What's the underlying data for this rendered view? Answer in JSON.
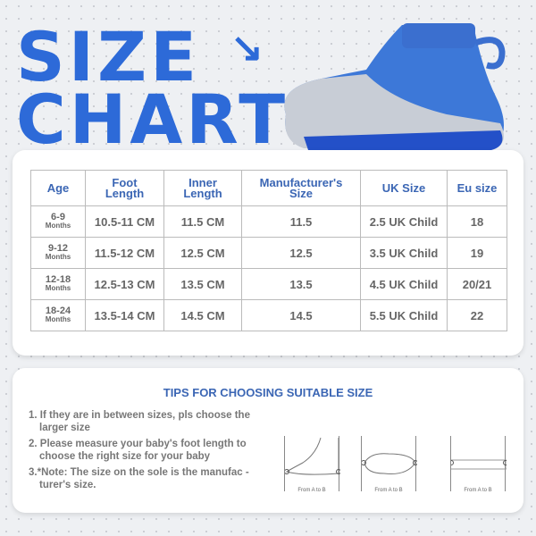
{
  "title": {
    "line1": "SIZE",
    "line2": "CHART",
    "arrow": "↘"
  },
  "table": {
    "headers": [
      "Age",
      "Foot Length",
      "Inner Length",
      "Manufacturer's Size",
      "UK Size",
      "Eu size"
    ],
    "rows": [
      {
        "age": "6-9",
        "unit": "Months",
        "foot": "10.5-11 CM",
        "inner": "11.5 CM",
        "mfr": "11.5",
        "uk": "2.5 UK Child",
        "eu": "18"
      },
      {
        "age": "9-12",
        "unit": "Months",
        "foot": "11.5-12 CM",
        "inner": "12.5 CM",
        "mfr": "12.5",
        "uk": "3.5 UK Child",
        "eu": "19"
      },
      {
        "age": "12-18",
        "unit": "Months",
        "foot": "12.5-13 CM",
        "inner": "13.5 CM",
        "mfr": "13.5",
        "uk": "4.5 UK Child",
        "eu": "20/21"
      },
      {
        "age": "18-24",
        "unit": "Months",
        "foot": "13.5-14 CM",
        "inner": "14.5 CM",
        "mfr": "14.5",
        "uk": "5.5 UK Child",
        "eu": "22"
      }
    ]
  },
  "tips": {
    "title": "TIPS FOR CHOOSING SUITABLE SIZE",
    "items": [
      "1. If they are in between sizes, pls choose the larger size",
      "2. Please measure your baby's foot length to choose the right size for your baby",
      "3.*Note: The size on the sole is the manufac -turer's size."
    ],
    "diagram_label": "From A to B"
  },
  "colors": {
    "accent": "#2d6ad8",
    "header_text": "#3b66b4"
  }
}
